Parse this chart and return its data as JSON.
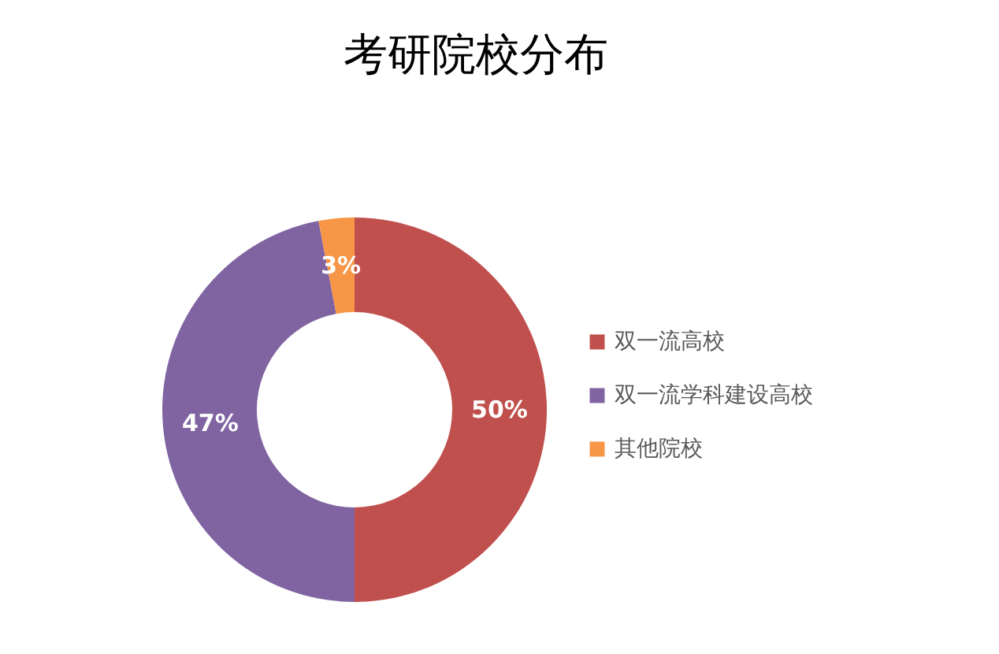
{
  "chart_data": {
    "type": "donut",
    "title": "考研院校分布",
    "categories": [
      "双一流高校",
      "双一流学科建设高校",
      "其他院校"
    ],
    "values": [
      50,
      47,
      3
    ],
    "colors": [
      "#c0504d",
      "#8064a2",
      "#f79646"
    ],
    "value_labels": [
      "50%",
      "47%",
      "3%"
    ],
    "legend": "right"
  }
}
